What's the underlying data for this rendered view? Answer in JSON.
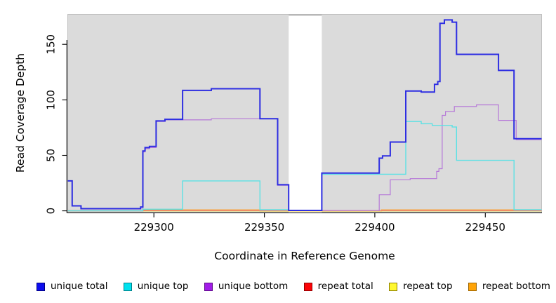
{
  "figure": {
    "background": "#ffffff",
    "plot_background": "#dbdbdb",
    "gap_band_color": "#ffffff",
    "axis_color": "#000000"
  },
  "chart_data": {
    "type": "line",
    "step": true,
    "title": "",
    "xlabel": "Coordinate in Reference Genome",
    "ylabel": "Read Coverage Depth",
    "xlim": [
      229261,
      229475.5
    ],
    "ylim": [
      -1.5,
      177
    ],
    "x_ticks": [
      "229300",
      "229350",
      "229400",
      "229450"
    ],
    "x_tick_values": [
      229300,
      229350,
      229400,
      229450
    ],
    "y_ticks": [
      "0",
      "50",
      "100",
      "150"
    ],
    "y_tick_values": [
      0,
      50,
      100,
      150
    ],
    "grid": false,
    "legend_position": "bottom",
    "gap_region": [
      229361,
      229376
    ],
    "series": [
      {
        "name": "unique total",
        "color": "#2e2ee2",
        "legend_fill": "#0d0dee",
        "legend_border": "#000080",
        "width": 2,
        "points": [
          [
            229261,
            27
          ],
          [
            229263,
            4.5
          ],
          [
            229267,
            2
          ],
          [
            229294,
            3.5
          ],
          [
            229295,
            54
          ],
          [
            229296,
            57
          ],
          [
            229298,
            58
          ],
          [
            229301,
            81
          ],
          [
            229305,
            82.5
          ],
          [
            229313,
            108.5
          ],
          [
            229326,
            110
          ],
          [
            229348,
            83
          ],
          [
            229356,
            23.5
          ],
          [
            229361,
            0.4
          ],
          [
            229376,
            34
          ],
          [
            229402,
            47.5
          ],
          [
            229403.5,
            49.5
          ],
          [
            229407,
            62
          ],
          [
            229414,
            108
          ],
          [
            229421,
            107
          ],
          [
            229427,
            114
          ],
          [
            229428.5,
            116.5
          ],
          [
            229429.5,
            169
          ],
          [
            229431.5,
            172
          ],
          [
            229435,
            170
          ],
          [
            229437,
            141
          ],
          [
            229456,
            126.5
          ],
          [
            229463,
            65
          ]
        ]
      },
      {
        "name": "unique top",
        "color": "#5ce1e4",
        "legend_fill": "#00e1ee",
        "legend_border": "#007d86",
        "width": 1.4,
        "points": [
          [
            229261,
            0
          ],
          [
            229295,
            1.5
          ],
          [
            229313,
            27
          ],
          [
            229348,
            1
          ],
          [
            229361,
            0.3
          ],
          [
            229376,
            33
          ],
          [
            229414,
            80.5
          ],
          [
            229421,
            78.5
          ],
          [
            229426,
            77
          ],
          [
            229435,
            75.5
          ],
          [
            229437,
            45.5
          ],
          [
            229463,
            1
          ]
        ]
      },
      {
        "name": "unique bottom",
        "color": "#b678d8",
        "legend_fill": "#a21ce8",
        "legend_border": "#5c0a87",
        "width": 1.2,
        "points": [
          [
            229261,
            0
          ],
          [
            229295,
            53
          ],
          [
            229296,
            56
          ],
          [
            229298,
            57
          ],
          [
            229301,
            80.5
          ],
          [
            229305,
            82
          ],
          [
            229326,
            83
          ],
          [
            229356,
            23
          ],
          [
            229361,
            0.3
          ],
          [
            229402,
            14.5
          ],
          [
            229407,
            28
          ],
          [
            229416,
            29
          ],
          [
            229428,
            35.5
          ],
          [
            229429,
            38
          ],
          [
            229430.5,
            86
          ],
          [
            229432,
            89.5
          ],
          [
            229436,
            94
          ],
          [
            229446,
            95.5
          ],
          [
            229456,
            81.5
          ],
          [
            229464,
            64
          ]
        ]
      },
      {
        "name": "repeat total",
        "color": "#e87a90",
        "legend_fill": "#fb0408",
        "legend_border": "#8f0000",
        "width": 1.2,
        "points": [
          [
            229261,
            0.2
          ]
        ]
      },
      {
        "name": "repeat top",
        "color": "#ffe800",
        "legend_fill": "#fff830",
        "legend_border": "#8a7d00",
        "width": 1.2,
        "points": [
          [
            229261,
            0
          ]
        ]
      },
      {
        "name": "repeat bottom",
        "color": "#ff9e1f",
        "legend_fill": "#ffa408",
        "legend_border": "#9c6400",
        "width": 1.6,
        "points": [
          [
            229261,
            0
          ],
          [
            229295,
            0.8
          ],
          [
            229348,
            0
          ],
          [
            229403,
            0.8
          ]
        ]
      }
    ]
  }
}
